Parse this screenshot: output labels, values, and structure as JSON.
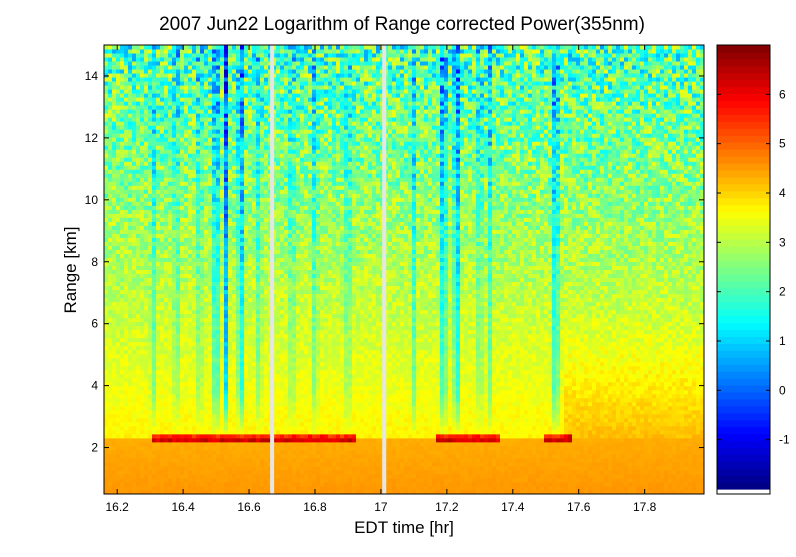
{
  "chart_data": {
    "type": "heatmap",
    "title": "2007 Jun22  Logarithm of Range corrected Power(355nm)",
    "xlabel": "EDT time [hr]",
    "ylabel": "Range [km]",
    "xlim": [
      16.16,
      17.98
    ],
    "ylim": [
      0.5,
      15
    ],
    "xticks": [
      "16.2",
      "16.4",
      "16.6",
      "16.8",
      "17",
      "17.2",
      "17.4",
      "17.6",
      "17.8"
    ],
    "xtick_values": [
      16.2,
      16.4,
      16.6,
      16.8,
      17.0,
      17.2,
      17.4,
      17.6,
      17.8
    ],
    "yticks": [
      "2",
      "4",
      "6",
      "8",
      "10",
      "12",
      "14"
    ],
    "ytick_values": [
      2,
      4,
      6,
      8,
      10,
      12,
      14
    ],
    "colorbar": {
      "range": [
        -2,
        7
      ],
      "ticks": [
        "-1",
        "0",
        "1",
        "2",
        "3",
        "4",
        "5",
        "6"
      ],
      "tick_values": [
        -1,
        0,
        1,
        2,
        3,
        4,
        5,
        6
      ],
      "colormap": "jet"
    },
    "data_gaps_hr": [
      16.67,
      17.01
    ],
    "boundary_layer_top_km": 2.3,
    "description_of_field": {
      "near_surface_value": 4.6,
      "mid_range_value": 3.3,
      "upper_range_value": 2.0,
      "cloud_shadow_columns_hr": [
        16.31,
        16.38,
        16.45,
        16.5,
        16.53,
        16.575,
        16.63,
        16.73,
        16.8,
        16.9,
        17.1,
        17.19,
        17.23,
        17.3,
        17.33,
        17.53
      ]
    }
  }
}
